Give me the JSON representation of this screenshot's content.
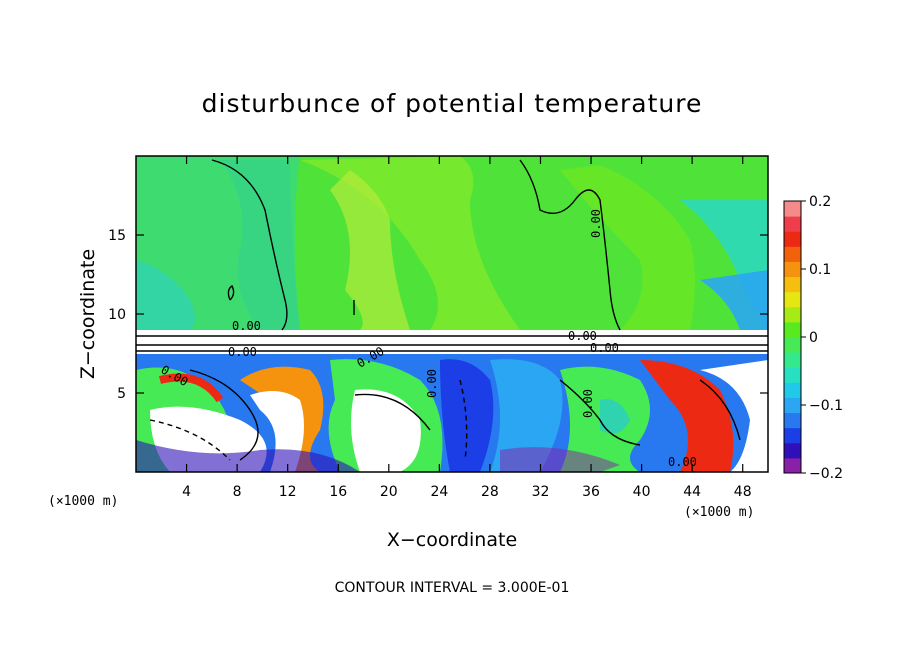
{
  "chart_data": {
    "type": "heatmap",
    "title": "disturbunce of potential temperature",
    "xlabel": "X−coordinate",
    "ylabel": "Z−coordinate",
    "x_unit_left": "(×1000 m)",
    "x_unit_right": "(×1000 m)",
    "xlim": [
      0,
      50
    ],
    "ylim": [
      0,
      20
    ],
    "x_ticks": [
      4,
      8,
      12,
      16,
      20,
      24,
      28,
      32,
      36,
      40,
      44,
      48
    ],
    "x_tick_labels": [
      "4",
      "8",
      "12",
      "16",
      "20",
      "24",
      "28",
      "32",
      "36",
      "40",
      "44",
      "48"
    ],
    "y_ticks": [
      5,
      10,
      15
    ],
    "y_tick_labels": [
      "5",
      "10",
      "15"
    ],
    "colorbar": {
      "range": [
        -0.2,
        0.2
      ],
      "ticks": [
        0.2,
        0.1,
        0,
        -0.1,
        -0.2
      ],
      "tick_labels": [
        "0.2",
        "0.1",
        "0",
        "−0.1",
        "−0.2"
      ],
      "colors": [
        "#8a1fa8",
        "#2f10b8",
        "#1c3ee6",
        "#2878f0",
        "#2aa6f2",
        "#1fc9e8",
        "#27e0c2",
        "#34e88e",
        "#45ea55",
        "#58ea1e",
        "#a6ea16",
        "#e6e612",
        "#f5bf10",
        "#f5920e",
        "#f2620c",
        "#ec2a14",
        "#ef3e4a",
        "#f58a8a"
      ]
    },
    "contour_labels": [
      "0.00",
      "0.00",
      "0.00",
      "0.00",
      "0.00",
      "0.00",
      "0.00",
      "0.00",
      "0.00",
      "0.00"
    ],
    "contour_interval_text": "CONTOUR INTERVAL =  3.000E-01"
  }
}
